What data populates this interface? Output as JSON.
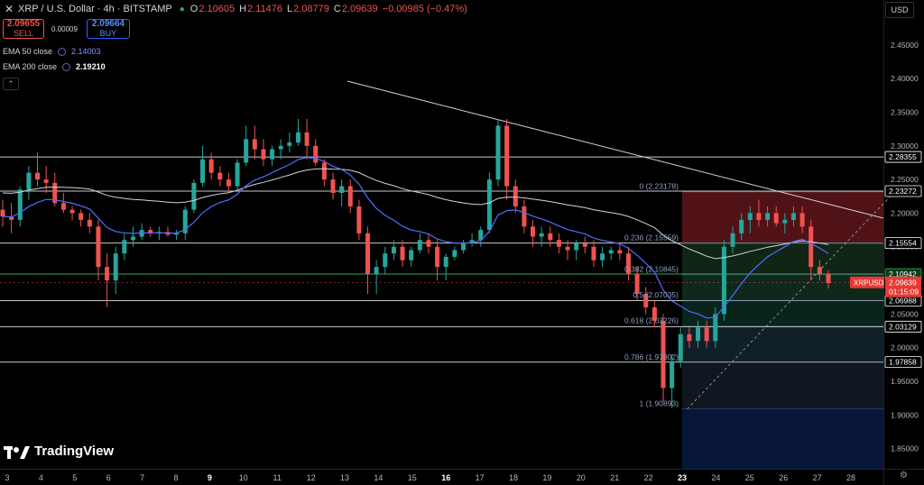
{
  "header": {
    "close_icon": "close-icon",
    "title": "XRP / U.S. Dollar · 4h · BITSTAMP",
    "status_color": "#26a69a",
    "o_label": "O",
    "o": "2.10605",
    "h_label": "H",
    "h": "2.11476",
    "l_label": "L",
    "l": "2.08779",
    "c_label": "C",
    "c": "2.09639",
    "change": "−0.00985 (−0.47%)"
  },
  "trade": {
    "sell_price": "2.09655",
    "sell_label": "SELL",
    "spread": "0.00009",
    "buy_price": "2.09664",
    "buy_label": "BUY"
  },
  "ema50": {
    "name": "EMA 50 close",
    "value": "2.14003",
    "color": "#4c6fff"
  },
  "ema200": {
    "name": "EMA 200 close",
    "value": "2.19210",
    "color": "#d1d4dc"
  },
  "currency": "USD",
  "logo_text": "TradingView",
  "chart_data": {
    "type": "candlestick",
    "symbol_tag": "XRPUSD",
    "last_price": "2.09639",
    "countdown": "01:15:09",
    "ylim": [
      1.82,
      2.49
    ],
    "y_ticks": [
      "2.45000",
      "2.40000",
      "2.35000",
      "2.30000",
      "2.25000",
      "2.20000",
      "2.15000",
      "2.10000",
      "2.05000",
      "2.00000",
      "1.95000",
      "1.90000",
      "1.85000"
    ],
    "x_ticks": [
      "3",
      "4",
      "5",
      "6",
      "7",
      "8",
      "9",
      "10",
      "11",
      "12",
      "13",
      "14",
      "15",
      "16",
      "17",
      "18",
      "19",
      "20",
      "21",
      "22",
      "23",
      "24",
      "25",
      "26",
      "27",
      "28"
    ],
    "bold_ticks": [
      "9",
      "16",
      "23"
    ],
    "h_levels": [
      2.28355,
      2.23272,
      2.15554,
      2.10942,
      2.06988,
      2.03129,
      1.97858
    ],
    "h_level_labels": [
      "2.28355",
      "2.23272",
      "2.15554",
      "2.10942",
      "2.06988",
      "2.03129",
      "1.97858"
    ],
    "fib": [
      {
        "label": "0 (2.23178)",
        "v": 2.23178
      },
      {
        "label": "0.236 (2.15559)",
        "v": 2.15559
      },
      {
        "label": "0.382 (2.10845)",
        "v": 2.10845
      },
      {
        "label": "0.5 (2.07035)",
        "v": 2.07035
      },
      {
        "label": "0.618 (2.03226)",
        "v": 2.03226
      },
      {
        "label": "0.786 (1.97802)",
        "v": 1.97802
      },
      {
        "label": "1 (1.90893)",
        "v": 1.90893
      }
    ],
    "fib_colors": [
      "#b22833",
      "#2d6a3a",
      "#1f5a3f",
      "#12503f",
      "#1d3a4a",
      "#1e2a3a",
      "#0a1a4a"
    ],
    "up_color": "#26a69a",
    "down_color": "#ef5350",
    "candles": [
      [
        2.205,
        2.22,
        2.18,
        2.195
      ],
      [
        2.195,
        2.215,
        2.17,
        2.19
      ],
      [
        2.19,
        2.24,
        2.18,
        2.235
      ],
      [
        2.235,
        2.27,
        2.22,
        2.26
      ],
      [
        2.26,
        2.29,
        2.24,
        2.25
      ],
      [
        2.25,
        2.27,
        2.23,
        2.245
      ],
      [
        2.245,
        2.26,
        2.21,
        2.215
      ],
      [
        2.215,
        2.23,
        2.2,
        2.205
      ],
      [
        2.205,
        2.21,
        2.19,
        2.2
      ],
      [
        2.2,
        2.205,
        2.18,
        2.19
      ],
      [
        2.19,
        2.2,
        2.17,
        2.18
      ],
      [
        2.18,
        2.19,
        2.1,
        2.12
      ],
      [
        2.12,
        2.14,
        2.06,
        2.1
      ],
      [
        2.1,
        2.15,
        2.08,
        2.14
      ],
      [
        2.14,
        2.17,
        2.13,
        2.16
      ],
      [
        2.16,
        2.18,
        2.15,
        2.165
      ],
      [
        2.165,
        2.185,
        2.16,
        2.175
      ],
      [
        2.175,
        2.18,
        2.165,
        2.17
      ],
      [
        2.17,
        2.18,
        2.16,
        2.172
      ],
      [
        2.172,
        2.18,
        2.165,
        2.168
      ],
      [
        2.168,
        2.175,
        2.16,
        2.17
      ],
      [
        2.17,
        2.21,
        2.16,
        2.205
      ],
      [
        2.205,
        2.25,
        2.2,
        2.245
      ],
      [
        2.245,
        2.3,
        2.24,
        2.28
      ],
      [
        2.28,
        2.29,
        2.25,
        2.26
      ],
      [
        2.26,
        2.27,
        2.24,
        2.25
      ],
      [
        2.25,
        2.26,
        2.23,
        2.24
      ],
      [
        2.24,
        2.28,
        2.235,
        2.275
      ],
      [
        2.275,
        2.33,
        2.27,
        2.31
      ],
      [
        2.31,
        2.33,
        2.28,
        2.295
      ],
      [
        2.295,
        2.31,
        2.27,
        2.28
      ],
      [
        2.28,
        2.3,
        2.27,
        2.295
      ],
      [
        2.295,
        2.31,
        2.28,
        2.3
      ],
      [
        2.3,
        2.32,
        2.29,
        2.305
      ],
      [
        2.305,
        2.34,
        2.3,
        2.32
      ],
      [
        2.32,
        2.34,
        2.28,
        2.3
      ],
      [
        2.3,
        2.31,
        2.27,
        2.275
      ],
      [
        2.275,
        2.28,
        2.24,
        2.25
      ],
      [
        2.25,
        2.26,
        2.22,
        2.23
      ],
      [
        2.23,
        2.25,
        2.21,
        2.24
      ],
      [
        2.24,
        2.25,
        2.2,
        2.21
      ],
      [
        2.21,
        2.22,
        2.16,
        2.17
      ],
      [
        2.17,
        2.18,
        2.08,
        2.11
      ],
      [
        2.11,
        2.13,
        2.08,
        2.12
      ],
      [
        2.12,
        2.15,
        2.11,
        2.14
      ],
      [
        2.14,
        2.16,
        2.13,
        2.15
      ],
      [
        2.15,
        2.16,
        2.12,
        2.13
      ],
      [
        2.13,
        2.15,
        2.12,
        2.145
      ],
      [
        2.145,
        2.17,
        2.14,
        2.16
      ],
      [
        2.16,
        2.17,
        2.14,
        2.15
      ],
      [
        2.15,
        2.16,
        2.1,
        2.12
      ],
      [
        2.12,
        2.14,
        2.1,
        2.135
      ],
      [
        2.135,
        2.15,
        2.13,
        2.145
      ],
      [
        2.145,
        2.16,
        2.14,
        2.155
      ],
      [
        2.155,
        2.17,
        2.15,
        2.16
      ],
      [
        2.16,
        2.18,
        2.15,
        2.175
      ],
      [
        2.175,
        2.26,
        2.17,
        2.25
      ],
      [
        2.25,
        2.34,
        2.24,
        2.33
      ],
      [
        2.33,
        2.34,
        2.22,
        2.24
      ],
      [
        2.24,
        2.25,
        2.2,
        2.21
      ],
      [
        2.21,
        2.22,
        2.17,
        2.18
      ],
      [
        2.18,
        2.19,
        2.15,
        2.165
      ],
      [
        2.165,
        2.18,
        2.15,
        2.17
      ],
      [
        2.17,
        2.18,
        2.15,
        2.16
      ],
      [
        2.16,
        2.17,
        2.14,
        2.15
      ],
      [
        2.15,
        2.16,
        2.13,
        2.145
      ],
      [
        2.145,
        2.16,
        2.13,
        2.155
      ],
      [
        2.155,
        2.165,
        2.14,
        2.15
      ],
      [
        2.15,
        2.16,
        2.12,
        2.13
      ],
      [
        2.13,
        2.15,
        2.12,
        2.14
      ],
      [
        2.14,
        2.15,
        2.13,
        2.145
      ],
      [
        2.145,
        2.155,
        2.13,
        2.14
      ],
      [
        2.14,
        2.15,
        2.1,
        2.11
      ],
      [
        2.11,
        2.12,
        2.07,
        2.08
      ],
      [
        2.08,
        2.09,
        2.05,
        2.06
      ],
      [
        2.06,
        2.07,
        2.03,
        2.04
      ],
      [
        2.04,
        2.05,
        1.92,
        1.94
      ],
      [
        1.94,
        1.99,
        1.91,
        1.98
      ],
      [
        1.98,
        2.03,
        1.97,
        2.02
      ],
      [
        2.02,
        2.03,
        2.0,
        2.01
      ],
      [
        2.01,
        2.04,
        2.0,
        2.03
      ],
      [
        2.03,
        2.04,
        2.0,
        2.01
      ],
      [
        2.01,
        2.06,
        2.0,
        2.05
      ],
      [
        2.05,
        2.16,
        2.04,
        2.15
      ],
      [
        2.15,
        2.18,
        2.14,
        2.17
      ],
      [
        2.17,
        2.2,
        2.16,
        2.19
      ],
      [
        2.19,
        2.21,
        2.17,
        2.2
      ],
      [
        2.2,
        2.22,
        2.18,
        2.19
      ],
      [
        2.19,
        2.21,
        2.18,
        2.2
      ],
      [
        2.2,
        2.21,
        2.18,
        2.185
      ],
      [
        2.185,
        2.2,
        2.17,
        2.19
      ],
      [
        2.19,
        2.21,
        2.18,
        2.2
      ],
      [
        2.2,
        2.21,
        2.17,
        2.18
      ],
      [
        2.18,
        2.19,
        2.1,
        2.12
      ],
      [
        2.12,
        2.13,
        2.1,
        2.11
      ],
      [
        2.11,
        2.115,
        2.088,
        2.096
      ]
    ]
  }
}
